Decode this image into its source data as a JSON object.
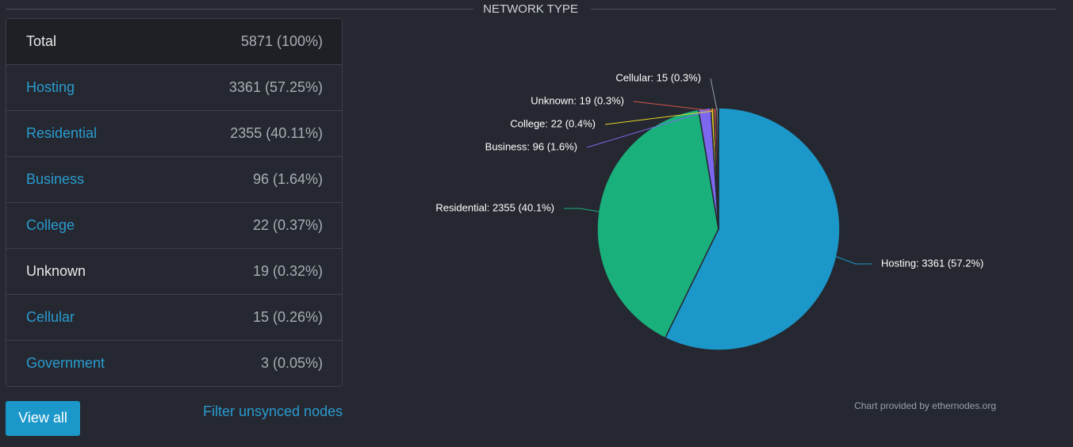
{
  "header": {
    "title": "NETWORK TYPE"
  },
  "table": {
    "rows": [
      [
        "Total",
        "5871 (100%)"
      ],
      [
        "Hosting",
        "3361 (57.25%)"
      ],
      [
        "Residential",
        "2355 (40.11%)"
      ],
      [
        "Business",
        "96 (1.64%)"
      ],
      [
        "College",
        "22 (0.37%)"
      ],
      [
        "Unknown",
        "19 (0.32%)"
      ],
      [
        "Cellular",
        "15 (0.26%)"
      ],
      [
        "Government",
        "3 (0.05%)"
      ]
    ]
  },
  "actions": {
    "view_all": "View all",
    "filter": "Filter unsynced nodes"
  },
  "chart_data": {
    "type": "pie",
    "values": [
      3361,
      2355,
      96,
      22,
      19,
      15,
      3
    ],
    "value_labels": [
      "Hosting: 3361 (57.2%)",
      "Residential: 2355 (40.1%)",
      "Business: 96 (1.6%)",
      "College: 22 (0.4%)",
      "Unknown: 19 (0.3%)",
      "Cellular: 15 (0.3%)",
      null
    ],
    "colors": [
      "#1b98c9",
      "#1ab07c",
      "#7b68ee",
      "#e6d22a",
      "#d9534f",
      "#9aa0a8",
      "#5bc0de"
    ],
    "credit": "Chart provided by ethernodes.org"
  }
}
